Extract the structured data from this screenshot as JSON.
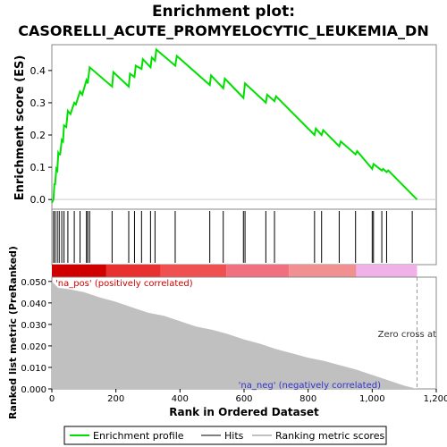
{
  "chart_data": {
    "type": "line",
    "title": "Enrichment plot:",
    "subtitle": "CASORELLI_ACUTE_PROMYELOCYTIC_LEUKEMIA_DN",
    "es_panel": {
      "ylabel": "Enrichment score (ES)",
      "ylim": [
        -0.03,
        0.48
      ],
      "yticks": [
        0.0,
        0.1,
        0.2,
        0.3,
        0.4
      ],
      "ytick_labels": [
        "0.0",
        "0.1",
        "0.2",
        "0.3",
        "0.4"
      ],
      "series": [
        {
          "name": "Enrichment profile",
          "color": "#00e000",
          "x": [
            0,
            5,
            8,
            10,
            14,
            17,
            20,
            23,
            26,
            31,
            35,
            38,
            45,
            50,
            58,
            70,
            75,
            88,
            95,
            108,
            112,
            118,
            188,
            192,
            240,
            244,
            258,
            262,
            280,
            284,
            308,
            312,
            322,
            326,
            385,
            390,
            493,
            497,
            535,
            540,
            598,
            603,
            668,
            672,
            695,
            700,
            820,
            824,
            842,
            847,
            897,
            902,
            948,
            953,
            1000,
            1004,
            1030,
            1034,
            1045,
            1050,
            1140
          ],
          "y": [
            -0.01,
            0.0,
            0.05,
            0.045,
            0.095,
            0.09,
            0.145,
            0.14,
            0.14,
            0.185,
            0.18,
            0.23,
            0.225,
            0.275,
            0.265,
            0.3,
            0.295,
            0.335,
            0.325,
            0.37,
            0.36,
            0.41,
            0.35,
            0.395,
            0.35,
            0.39,
            0.38,
            0.415,
            0.405,
            0.435,
            0.41,
            0.44,
            0.43,
            0.465,
            0.415,
            0.445,
            0.355,
            0.385,
            0.345,
            0.375,
            0.315,
            0.36,
            0.3,
            0.325,
            0.305,
            0.32,
            0.2,
            0.22,
            0.2,
            0.215,
            0.165,
            0.18,
            0.14,
            0.15,
            0.095,
            0.11,
            0.09,
            0.095,
            0.085,
            0.09,
            0.0
          ]
        }
      ]
    },
    "hits_panel": {
      "hit_positions": [
        5,
        10,
        17,
        23,
        31,
        38,
        50,
        70,
        88,
        108,
        112,
        118,
        188,
        240,
        258,
        280,
        308,
        322,
        385,
        493,
        535,
        598,
        603,
        668,
        695,
        820,
        842,
        897,
        948,
        1000,
        1004,
        1030,
        1045,
        1125
      ]
    },
    "color_bar": {
      "segments": [
        {
          "from": 0,
          "to": 170,
          "color": "#d00000"
        },
        {
          "from": 170,
          "to": 340,
          "color": "#e83030"
        },
        {
          "from": 340,
          "to": 545,
          "color": "#f05050"
        },
        {
          "from": 545,
          "to": 740,
          "color": "#f07080"
        },
        {
          "from": 740,
          "to": 950,
          "color": "#f09090"
        },
        {
          "from": 950,
          "to": 1140,
          "color": "#f0b0e8"
        }
      ]
    },
    "metric_panel": {
      "ylabel": "Ranked list metric (PreRanked)",
      "xlabel": "Rank in Ordered Dataset",
      "ylim": [
        0.0,
        0.052
      ],
      "yticks": [
        0.0,
        0.01,
        0.02,
        0.03,
        0.04,
        0.05
      ],
      "ytick_labels": [
        "0.000",
        "0.010",
        "0.020",
        "0.030",
        "0.040",
        "0.050"
      ],
      "xlim": [
        0,
        1200
      ],
      "xticks": [
        0,
        200,
        400,
        600,
        800,
        1000,
        1200
      ],
      "xtick_labels": [
        "0",
        "200",
        "400",
        "600",
        "800",
        "1,000",
        "1,200"
      ],
      "fill_color": "#c0c0c0",
      "series": [
        {
          "name": "Ranking metric scores",
          "x": [
            0,
            20,
            50,
            100,
            150,
            200,
            250,
            300,
            350,
            400,
            450,
            500,
            550,
            600,
            650,
            700,
            750,
            800,
            850,
            900,
            950,
            1000,
            1050,
            1100,
            1140
          ],
          "y": [
            0.05,
            0.047,
            0.0465,
            0.045,
            0.0425,
            0.0405,
            0.038,
            0.0355,
            0.034,
            0.0315,
            0.029,
            0.0275,
            0.0255,
            0.023,
            0.021,
            0.0185,
            0.0165,
            0.0145,
            0.013,
            0.011,
            0.009,
            0.0065,
            0.004,
            0.0015,
            0.0
          ]
        }
      ],
      "pos_label": "'na_pos' (positively correlated)",
      "neg_label": "'na_neg' (negatively correlated)",
      "zero_cross_label": "Zero cross at",
      "zero_cross": 1140
    },
    "legend": {
      "items": [
        {
          "label": "Enrichment profile",
          "color": "#00e000"
        },
        {
          "label": "Hits",
          "color": "#000000"
        },
        {
          "label": "Ranking metric scores",
          "color": "#c0c0c0"
        }
      ]
    }
  }
}
